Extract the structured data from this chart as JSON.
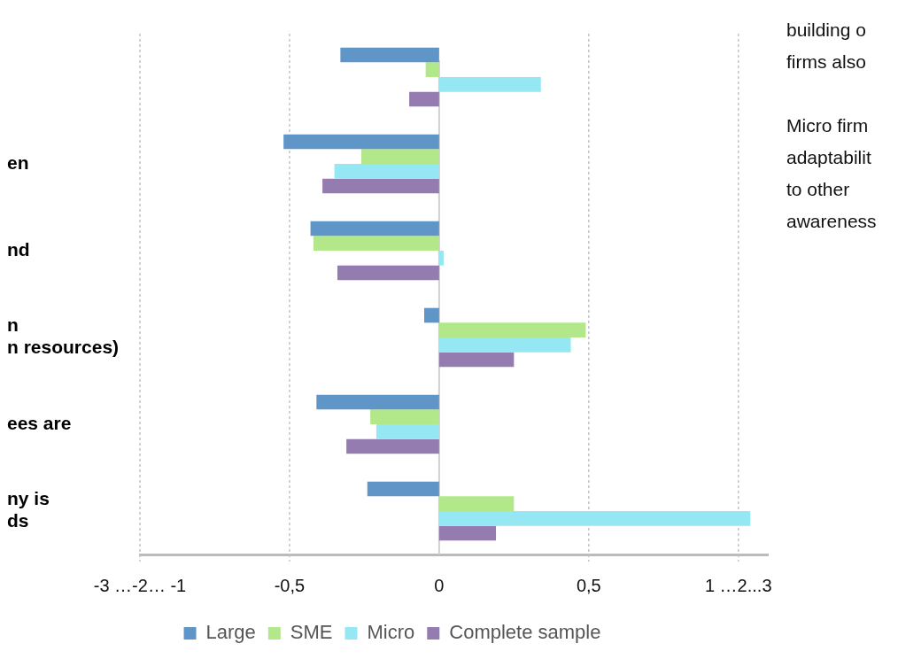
{
  "chart_data": {
    "type": "bar",
    "orientation": "horizontal",
    "categories": [
      null,
      "en",
      "nd",
      "n\nn resources)",
      "ees are",
      "ny is\nds"
    ],
    "series": [
      {
        "name": "Large",
        "color": "#6095c8",
        "values": [
          -0.33,
          -0.52,
          -0.43,
          -0.05,
          -0.41,
          -0.24
        ]
      },
      {
        "name": "SME",
        "color": "#b2e88a",
        "values": [
          -0.045,
          -0.26,
          -0.42,
          0.49,
          -0.23,
          0.25
        ]
      },
      {
        "name": "Micro",
        "color": "#95e7f3",
        "values": [
          0.34,
          -0.35,
          0.015,
          0.44,
          -0.21,
          1.04
        ]
      },
      {
        "name": "Complete sample",
        "color": "#957cb0",
        "values": [
          -0.1,
          -0.39,
          -0.34,
          0.25,
          -0.31,
          0.19
        ]
      }
    ],
    "xlim": [
      -1,
      1.1
    ],
    "xticks": [
      {
        "value": -1,
        "label": "-3 …-2… -1"
      },
      {
        "value": -0.5,
        "label": "-0,5"
      },
      0,
      {
        "value": 0.5,
        "label": "0,5"
      },
      {
        "value": 1,
        "label": "1 …2...3"
      }
    ],
    "grid": "x",
    "legend": "bottom",
    "annotations": [
      "building o\nfirms also",
      "Micro firm\nadaptabilit\nto other\nawareness"
    ]
  }
}
